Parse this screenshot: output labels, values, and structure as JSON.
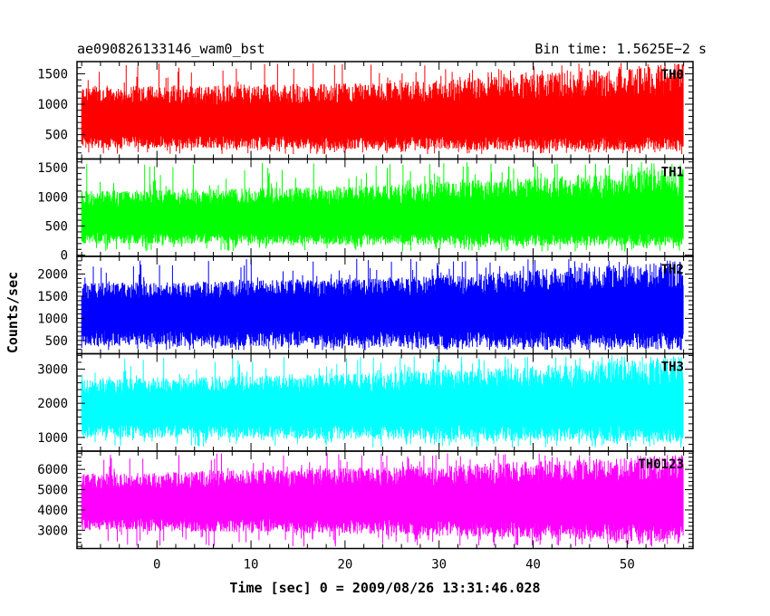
{
  "header": {
    "title": "ae090826133146_wam0_bst",
    "bin_time": "Bin time: 1.5625E−2 s"
  },
  "chart_data": {
    "type": "line",
    "xlabel": "Time [sec] 0 = 2009/08/26 13:31:46.028",
    "ylabel": "Counts/sec",
    "xlim": [
      -8.5,
      57
    ],
    "data_x_range": [
      -8,
      56
    ],
    "x_ticks": [
      0,
      10,
      20,
      30,
      40,
      50
    ],
    "panels": [
      {
        "name": "TH0",
        "color": "#ff0000",
        "ylim": [
          100,
          1700
        ],
        "yticks": [
          500,
          1000,
          1500
        ],
        "mean": 730,
        "low": 180,
        "high": 1680,
        "envelope_low": [
          280,
          260,
          240
        ],
        "envelope_high": [
          1300,
          1350,
          1650
        ]
      },
      {
        "name": "TH1",
        "color": "#00ff00",
        "ylim": [
          -20,
          1650
        ],
        "yticks": [
          0,
          500,
          1000,
          1500
        ],
        "mean": 620,
        "low": 60,
        "high": 1600,
        "envelope_low": [
          200,
          180,
          150
        ],
        "envelope_high": [
          1100,
          1200,
          1500
        ]
      },
      {
        "name": "TH2",
        "color": "#0000ff",
        "ylim": [
          200,
          2400
        ],
        "yticks": [
          500,
          1000,
          1500,
          2000
        ],
        "mean": 1150,
        "low": 280,
        "high": 2350,
        "envelope_low": [
          380,
          350,
          320
        ],
        "envelope_high": [
          1800,
          1900,
          2300
        ]
      },
      {
        "name": "TH3",
        "color": "#00ffff",
        "ylim": [
          600,
          3450
        ],
        "yticks": [
          1000,
          2000,
          3000
        ],
        "mean": 1900,
        "low": 700,
        "high": 3400,
        "envelope_low": [
          1000,
          950,
          850
        ],
        "envelope_high": [
          2700,
          2900,
          3350
        ]
      },
      {
        "name": "TH0123",
        "color": "#ff00ff",
        "ylim": [
          2100,
          6900
        ],
        "yticks": [
          3000,
          4000,
          5000,
          6000
        ],
        "mean": 4400,
        "low": 2200,
        "high": 6800,
        "envelope_low": [
          3000,
          2800,
          2400
        ],
        "envelope_high": [
          5800,
          6100,
          6700
        ]
      }
    ]
  }
}
